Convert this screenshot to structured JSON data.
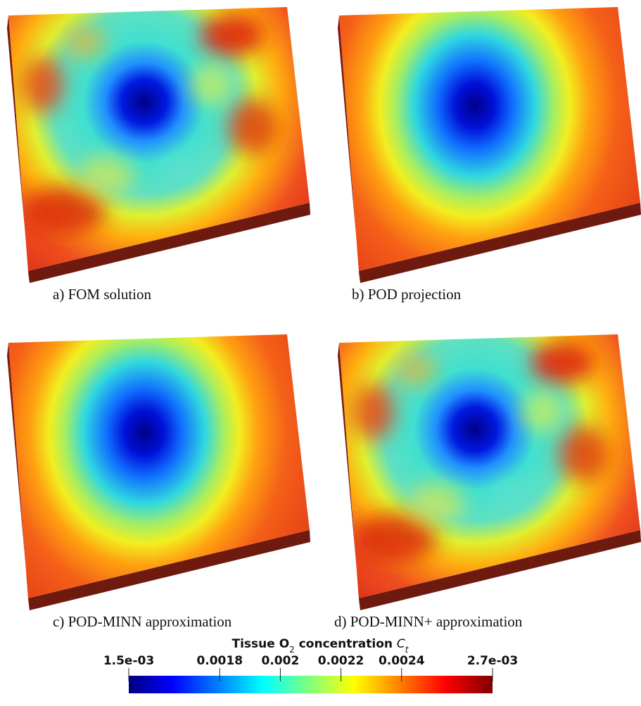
{
  "panels": [
    {
      "caption": "a) FOM solution"
    },
    {
      "caption": "b) POD projection"
    },
    {
      "caption": "c) POD-MINN approximation"
    },
    {
      "caption": "d) POD-MINN+ approximation"
    }
  ],
  "colorbar": {
    "title": {
      "text": "Tissue O",
      "subscript": "2",
      "text2": " concentration ",
      "symbol": "C",
      "symbol_subscript": "t"
    },
    "range": [
      0.0015,
      0.0027
    ],
    "ticks": [
      {
        "value": 0.0015,
        "label": "1.5e-03"
      },
      0.0018,
      0.002,
      0.0022,
      0.0024,
      {
        "value": 0.0027,
        "label": "2.7e-03"
      }
    ]
  }
}
